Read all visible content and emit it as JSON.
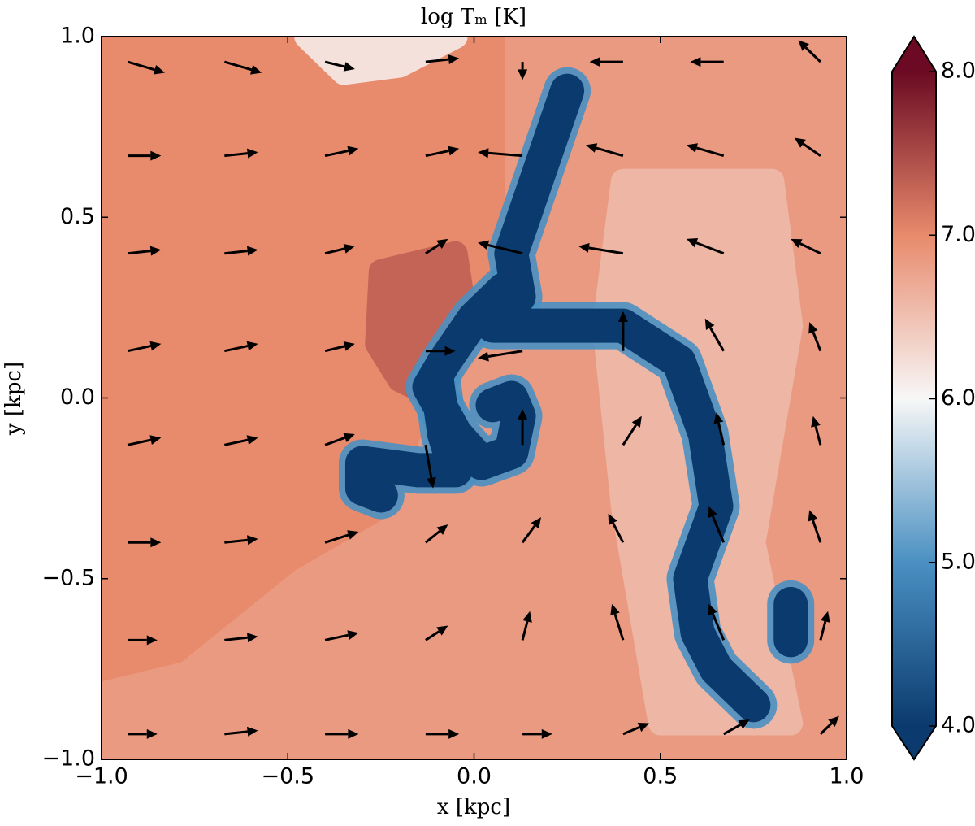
{
  "chart_data": {
    "type": "contour",
    "title": "log Tₘ  [K]",
    "x_label": "x  [kpc]",
    "y_label": "y  [kpc]",
    "xlim": [
      -1,
      1
    ],
    "ylim": [
      -1,
      1
    ],
    "xticks": [
      {
        "value": -1,
        "label": "−1.0"
      },
      {
        "value": -0.5,
        "label": "−0.5"
      },
      {
        "value": 0,
        "label": "0.0"
      },
      {
        "value": 0.5,
        "label": "0.5"
      },
      {
        "value": 1,
        "label": "1.0"
      }
    ],
    "yticks": [
      {
        "value": -1,
        "label": "−1.0"
      },
      {
        "value": -0.5,
        "label": "−0.5"
      },
      {
        "value": 0,
        "label": "0.0"
      },
      {
        "value": 0.5,
        "label": "0.5"
      },
      {
        "value": 1,
        "label": "1.0"
      }
    ],
    "clim": [
      4,
      8
    ],
    "cticks": [
      {
        "value": 4,
        "label": "4.0"
      },
      {
        "value": 5,
        "label": "5.0"
      },
      {
        "value": 6,
        "label": "6.0"
      },
      {
        "value": 7,
        "label": "7.0"
      },
      {
        "value": 8,
        "label": "8.0"
      }
    ],
    "cmap": [
      "#0b3a6e",
      "#4a90c2",
      "#f7f7f7",
      "#e88a6c",
      "#6b0a22"
    ],
    "background": 6.85,
    "regions": [
      {
        "value": 7.0,
        "points": [
          [
            -1,
            1
          ],
          [
            0.05,
            1
          ],
          [
            0.05,
            0.4
          ],
          [
            -0.1,
            0.1
          ],
          [
            -0.25,
            -0.3
          ],
          [
            -0.5,
            -0.45
          ],
          [
            -0.8,
            -0.7
          ],
          [
            -1,
            -0.75
          ]
        ]
      },
      {
        "value": 6.6,
        "points": [
          [
            0.4,
            0.6
          ],
          [
            0.8,
            0.6
          ],
          [
            0.85,
            0.2
          ],
          [
            0.75,
            -0.4
          ],
          [
            0.85,
            -0.9
          ],
          [
            0.5,
            -0.9
          ],
          [
            0.4,
            -0.3
          ],
          [
            0.35,
            0.2
          ]
        ]
      },
      {
        "value": 6.2,
        "points": [
          [
            -0.45,
            1
          ],
          [
            -0.05,
            1
          ],
          [
            -0.2,
            0.92
          ],
          [
            -0.35,
            0.9
          ]
        ]
      },
      {
        "value": 7.3,
        "points": [
          [
            -0.25,
            0.35
          ],
          [
            -0.05,
            0.4
          ],
          [
            -0.02,
            0.2
          ],
          [
            -0.1,
            0.0
          ],
          [
            -0.2,
            0.05
          ],
          [
            -0.26,
            0.15
          ]
        ]
      }
    ],
    "filaments": [
      {
        "value": 4.0,
        "points": [
          [
            0.25,
            0.85
          ],
          [
            0.2,
            0.7
          ],
          [
            0.15,
            0.55
          ],
          [
            0.1,
            0.4
          ],
          [
            0.12,
            0.28
          ]
        ]
      },
      {
        "value": 4.0,
        "points": [
          [
            0.08,
            0.3
          ],
          [
            0.0,
            0.22
          ],
          [
            -0.08,
            0.1
          ],
          [
            -0.12,
            0.03
          ],
          [
            -0.05,
            -0.1
          ],
          [
            0.02,
            -0.18
          ],
          [
            0.1,
            -0.15
          ],
          [
            0.12,
            -0.05
          ],
          [
            0.1,
            0.0
          ],
          [
            0.05,
            -0.02
          ]
        ]
      },
      {
        "value": 4.0,
        "points": [
          [
            0.05,
            0.2
          ],
          [
            0.25,
            0.2
          ],
          [
            0.4,
            0.2
          ],
          [
            0.55,
            0.1
          ],
          [
            0.62,
            -0.1
          ],
          [
            0.65,
            -0.3
          ],
          [
            0.58,
            -0.5
          ],
          [
            0.6,
            -0.65
          ],
          [
            0.65,
            -0.75
          ],
          [
            0.75,
            -0.85
          ]
        ]
      },
      {
        "value": 4.0,
        "points": [
          [
            -0.1,
            0.05
          ],
          [
            -0.08,
            -0.1
          ],
          [
            -0.05,
            -0.2
          ],
          [
            -0.15,
            -0.2
          ],
          [
            -0.3,
            -0.18
          ],
          [
            -0.3,
            -0.25
          ],
          [
            -0.25,
            -0.27
          ]
        ]
      },
      {
        "value": 4.0,
        "points": [
          [
            0.85,
            -0.57
          ],
          [
            0.85,
            -0.67
          ]
        ]
      }
    ],
    "quiver": {
      "x": [
        -0.93,
        -0.67,
        -0.4,
        -0.13,
        0.13,
        0.4,
        0.67,
        0.93
      ],
      "y": [
        0.93,
        0.67,
        0.4,
        0.13,
        -0.13,
        -0.4,
        -0.67,
        -0.93
      ],
      "u": [
        [
          0.1,
          0.1,
          0.08,
          0.09,
          0.0,
          -0.09,
          -0.09,
          -0.06
        ],
        [
          0.09,
          0.09,
          0.09,
          0.09,
          -0.12,
          -0.1,
          -0.1,
          -0.07
        ],
        [
          0.09,
          0.09,
          0.08,
          0.06,
          -0.12,
          -0.12,
          -0.1,
          -0.08
        ],
        [
          0.09,
          0.09,
          0.08,
          0.08,
          -0.12,
          0.0,
          -0.05,
          -0.03
        ],
        [
          0.09,
          0.09,
          0.08,
          0.02,
          0.0,
          0.05,
          -0.02,
          -0.02
        ],
        [
          0.09,
          0.09,
          0.09,
          0.06,
          0.05,
          -0.04,
          -0.04,
          -0.03
        ],
        [
          0.08,
          0.09,
          0.09,
          0.06,
          0.02,
          -0.03,
          -0.04,
          0.02
        ],
        [
          0.08,
          0.09,
          0.09,
          0.09,
          0.08,
          0.07,
          0.07,
          0.05
        ]
      ],
      "v": [
        [
          -0.03,
          -0.03,
          -0.02,
          0.01,
          -0.05,
          0.0,
          0.0,
          0.06
        ],
        [
          0.0,
          0.01,
          0.02,
          0.02,
          0.01,
          0.03,
          0.03,
          0.05
        ],
        [
          0.01,
          0.01,
          0.02,
          0.04,
          0.03,
          0.02,
          0.04,
          0.04
        ],
        [
          0.02,
          0.02,
          0.02,
          0.0,
          -0.02,
          0.11,
          0.09,
          0.08
        ],
        [
          0.02,
          0.02,
          0.03,
          -0.12,
          0.1,
          0.08,
          0.09,
          0.08
        ],
        [
          0.0,
          0.01,
          0.03,
          0.05,
          0.07,
          0.08,
          0.1,
          0.09
        ],
        [
          0.0,
          0.01,
          0.02,
          0.04,
          0.08,
          0.1,
          0.1,
          0.08
        ],
        [
          0.0,
          0.01,
          0.0,
          0.0,
          0.0,
          0.03,
          0.04,
          0.05
        ]
      ]
    }
  }
}
